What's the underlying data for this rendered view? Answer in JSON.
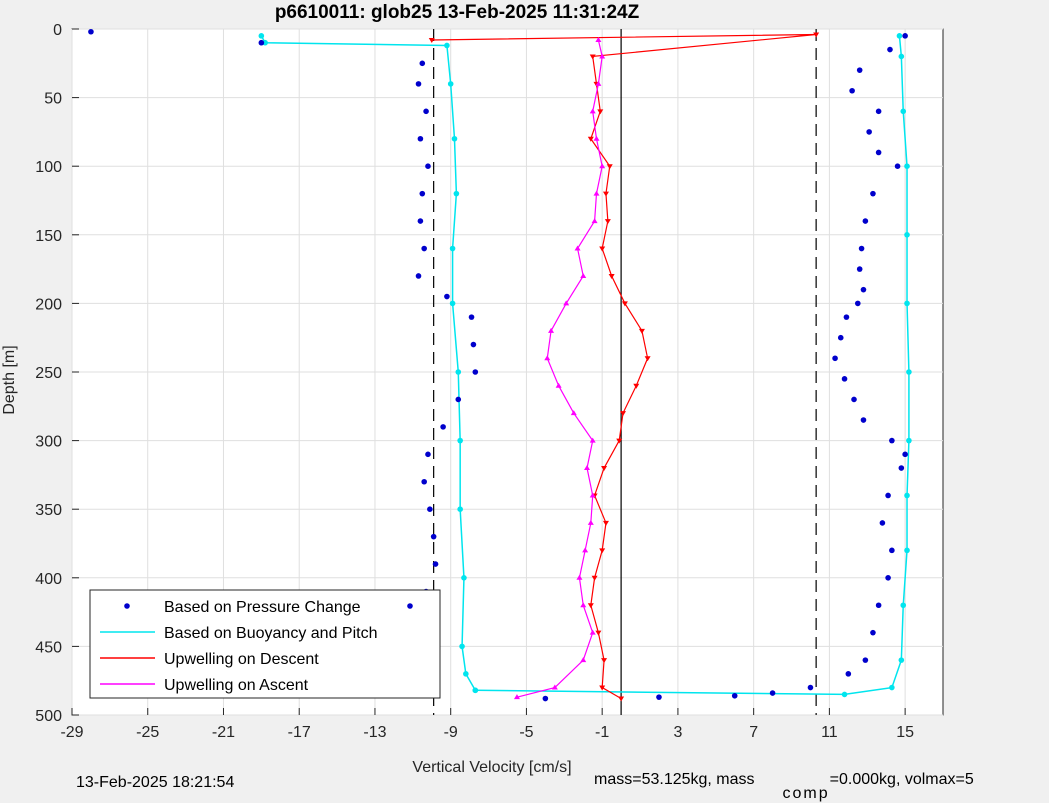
{
  "chart_data": {
    "type": "line",
    "title": "p6610011: glob25 13-Feb-2025 11:31:24Z",
    "xlabel": "Vertical Velocity [cm/s]",
    "ylabel": "Depth [m]",
    "xlim": [
      -29,
      17
    ],
    "ylim": [
      0,
      500
    ],
    "y_reversed": true,
    "grid": true,
    "x_ticks": [
      -29,
      -25,
      -21,
      -17,
      -13,
      -9,
      -5,
      -1,
      3,
      7,
      11,
      15
    ],
    "y_ticks": [
      0,
      50,
      100,
      150,
      200,
      250,
      300,
      350,
      400,
      450,
      500
    ],
    "legend_position": "bottom-left",
    "reference_lines": {
      "dashed": [
        -9.9,
        10.3
      ],
      "solid": [
        0
      ]
    },
    "colors": {
      "pressure": "#0000cc",
      "buoyancy": "#00e5ee",
      "descent": "#ff0000",
      "ascent": "#ff00ff"
    },
    "series": [
      {
        "name": "Based on Pressure Change",
        "style": "points",
        "segments": [
          {
            "depth": [
              2,
              10,
              25,
              40,
              60,
              80,
              100,
              120,
              140,
              160,
              180,
              195,
              210,
              230,
              250,
              270,
              290,
              310,
              330,
              350,
              370,
              390,
              410,
              430,
              450,
              470,
              480
            ],
            "velocity": [
              -28,
              -19,
              -10.5,
              -10.7,
              -10.3,
              -10.6,
              -10.2,
              -10.5,
              -10.6,
              -10.4,
              -10.7,
              -9.2,
              -7.9,
              -7.8,
              -7.7,
              -8.6,
              -9.4,
              -10.2,
              -10.4,
              -10.1,
              -9.9,
              -9.8,
              -10.3,
              -10.5,
              -10.6,
              -10.4,
              -9.9
            ]
          },
          {
            "depth": [
              488,
              487,
              486,
              484,
              480,
              470,
              460,
              440,
              420,
              400,
              380,
              360,
              340,
              320,
              310,
              300,
              285,
              270,
              255,
              240,
              225,
              210,
              200,
              190,
              175,
              160,
              140,
              120,
              100,
              90,
              75,
              60,
              45,
              30,
              15,
              5
            ],
            "velocity": [
              -4,
              2,
              6,
              8,
              10,
              12,
              12.9,
              13.3,
              13.6,
              14.1,
              14.3,
              13.8,
              14.1,
              14.8,
              15,
              14.3,
              12.8,
              12.3,
              11.8,
              11.3,
              11.6,
              11.9,
              12.5,
              12.8,
              12.6,
              12.7,
              12.9,
              13.3,
              14.6,
              13.6,
              13.1,
              13.6,
              12.2,
              12.6,
              14.2,
              15
            ]
          }
        ]
      },
      {
        "name": "Based on Buoyancy and Pitch",
        "style": "line",
        "segments": [
          {
            "depth": [
              5,
              10,
              12,
              40,
              80,
              120,
              160,
              200,
              250,
              300,
              350,
              400,
              450,
              470,
              482
            ],
            "velocity": [
              -19,
              -18.8,
              -9.2,
              -9,
              -8.8,
              -8.7,
              -8.9,
              -8.9,
              -8.6,
              -8.5,
              -8.5,
              -8.3,
              -8.4,
              -8.2,
              -7.7
            ]
          },
          {
            "depth": [
              482,
              485,
              480,
              460,
              420,
              380,
              340,
              300,
              250,
              200,
              150,
              100,
              60,
              20,
              5
            ],
            "velocity": [
              -7.7,
              11.8,
              14.3,
              14.8,
              14.9,
              15.1,
              15.1,
              15.2,
              15.2,
              15.1,
              15.1,
              15.1,
              14.9,
              14.8,
              14.7
            ]
          }
        ]
      },
      {
        "name": "Upwelling on Descent",
        "style": "line-marker",
        "depth": [
          8,
          4,
          20,
          40,
          60,
          80,
          100,
          120,
          140,
          160,
          180,
          200,
          220,
          240,
          260,
          280,
          300,
          320,
          340,
          360,
          380,
          400,
          420,
          440,
          460,
          480,
          488
        ],
        "velocity": [
          -10,
          10.3,
          -1.5,
          -1.3,
          -1.1,
          -1.6,
          -0.6,
          -0.8,
          -0.7,
          -1,
          -0.5,
          0.2,
          1.1,
          1.4,
          0.8,
          0.1,
          -0.1,
          -0.9,
          -1.4,
          -0.8,
          -1,
          -1.4,
          -1.6,
          -1.2,
          -0.9,
          -1,
          0
        ]
      },
      {
        "name": "Upwelling on Ascent",
        "style": "line-marker",
        "depth": [
          487,
          480,
          460,
          440,
          420,
          400,
          380,
          360,
          340,
          320,
          300,
          280,
          260,
          240,
          220,
          200,
          180,
          160,
          140,
          120,
          100,
          80,
          60,
          40,
          20,
          8
        ],
        "velocity": [
          -5.5,
          -3.5,
          -2,
          -1.5,
          -2,
          -2.2,
          -1.9,
          -1.6,
          -1.5,
          -1.8,
          -1.5,
          -2.5,
          -3.3,
          -3.9,
          -3.7,
          -2.9,
          -2,
          -2.3,
          -1.4,
          -1.3,
          -1,
          -1.3,
          -1.5,
          -1.2,
          -1,
          -1.2
        ]
      }
    ]
  },
  "footer": {
    "left": "13-Feb-2025 18:21:54",
    "right_main": "mass=53.125kg, mass",
    "right_sub": "comp",
    "right_rest": "=0.000kg, volmax=5"
  }
}
